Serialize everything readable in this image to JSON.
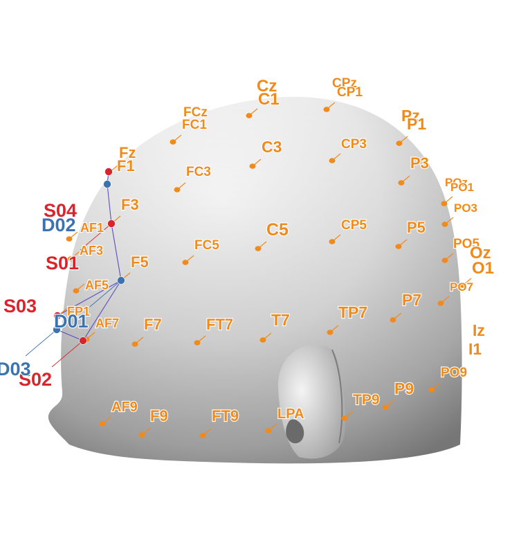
{
  "colors": {
    "eeg": "#f08a1a",
    "source": "#d9242c",
    "detector": "#3b73b0",
    "link": "#5b4bc4",
    "head_light": "#ffffff",
    "head_dark": "#8e8e8e"
  },
  "eeg_labels": [
    "Cz",
    "C1",
    "CPz",
    "CP1",
    "FCz",
    "FC1",
    "Pz",
    "P1",
    "Fz",
    "F1",
    "C3",
    "CP3",
    "P3",
    "FC3",
    "POz",
    "PO1",
    "PO3",
    "F3",
    "AF1",
    "C5",
    "CP5",
    "P5",
    "AF3",
    "FC5",
    "PO5",
    "Oz",
    "O1",
    "F5",
    "AF5",
    "PO7",
    "P7",
    "FP1",
    "T7",
    "TP7",
    "AF7",
    "F7",
    "FT7",
    "Iz",
    "I1",
    "PO9",
    "P9",
    "TP9",
    "AF9",
    "F9",
    "FT9",
    "LPA"
  ],
  "sources": [
    "S04",
    "S01",
    "S03",
    "S02"
  ],
  "detectors": [
    "D02",
    "D01",
    "D03"
  ]
}
